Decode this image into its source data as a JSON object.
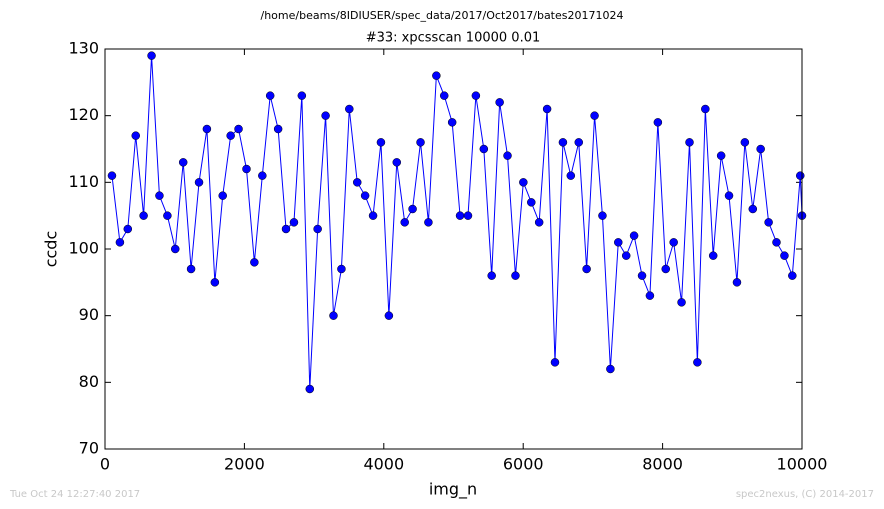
{
  "chart_data": {
    "type": "line",
    "suptitle": "/home/beams/8IDIUSER/spec_data/2017/Oct2017/bates20171024",
    "title": "#33: xpcsscan 10000 0.01",
    "xlabel": "img_n",
    "ylabel": "ccdc",
    "footer_left": "Tue Oct 24 12:27:40 2017",
    "footer_right": "spec2nexus, (C) 2014-2017",
    "x": [
      100,
      214,
      327,
      441,
      554,
      668,
      781,
      895,
      1008,
      1122,
      1235,
      1349,
      1462,
      1576,
      1689,
      1803,
      1916,
      2030,
      2143,
      2257,
      2370,
      2484,
      2597,
      2711,
      2824,
      2938,
      3051,
      3165,
      3278,
      3392,
      3505,
      3619,
      3732,
      3846,
      3959,
      4073,
      4186,
      4300,
      4413,
      4527,
      4640,
      4754,
      4867,
      4981,
      5094,
      5208,
      5321,
      5435,
      5548,
      5662,
      5775,
      5889,
      6002,
      6116,
      6229,
      6343,
      6456,
      6570,
      6683,
      6797,
      6910,
      7024,
      7137,
      7251,
      7364,
      7478,
      7591,
      7705,
      7818,
      7932,
      8045,
      8159,
      8272,
      8386,
      8499,
      8613,
      8726,
      8840,
      8953,
      9067,
      9180,
      9294,
      9407,
      9521,
      9634,
      9748,
      9861,
      9975,
      10000
    ],
    "series": [
      {
        "name": "ccdc",
        "color": "#0000ff",
        "values": [
          111,
          101,
          103,
          117,
          105,
          129,
          108,
          105,
          100,
          113,
          97,
          110,
          118,
          95,
          108,
          117,
          118,
          112,
          98,
          111,
          123,
          118,
          103,
          104,
          123,
          79,
          103,
          120,
          90,
          97,
          121,
          110,
          108,
          105,
          116,
          90,
          113,
          104,
          106,
          116,
          104,
          126,
          123,
          119,
          105,
          105,
          123,
          115,
          96,
          122,
          114,
          96,
          110,
          107,
          104,
          121,
          83,
          116,
          111,
          116,
          97,
          120,
          105,
          82,
          101,
          99,
          102,
          96,
          93,
          119,
          97,
          101,
          92,
          116,
          83,
          121,
          99,
          114,
          108,
          95,
          116,
          106,
          115,
          104,
          101,
          99,
          96,
          111,
          105
        ]
      }
    ],
    "xlim": [
      0,
      10000
    ],
    "xticks": [
      0,
      2000,
      4000,
      6000,
      8000,
      10000
    ],
    "ylim": [
      70,
      130
    ],
    "yticks": [
      70,
      80,
      90,
      100,
      110,
      120,
      130
    ]
  }
}
